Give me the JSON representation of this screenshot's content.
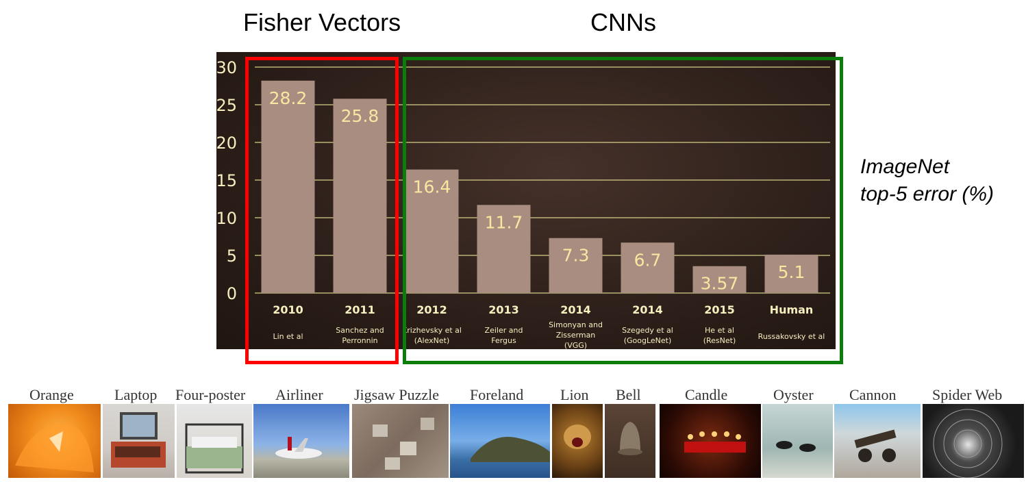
{
  "headings": {
    "fisher": "Fisher Vectors",
    "cnn": "CNNs"
  },
  "ylabel_lines": [
    "ImageNet",
    "top-5 error (%)"
  ],
  "colors": {
    "bar": "#a88d80",
    "value_label": "#f7e7a1",
    "grid": "#d8cf8a",
    "axis_text": "#f6efc0",
    "fisher_box": "#ff0000",
    "cnn_box": "#0b7d0b"
  },
  "chart_data": {
    "type": "bar",
    "categories": [
      "2010",
      "2011",
      "2012",
      "2013",
      "2014",
      "2014",
      "2015",
      "Human"
    ],
    "sublabels": [
      [
        "Lin et al"
      ],
      [
        "Sanchez and",
        "Perronnin"
      ],
      [
        "Krizhevsky et al",
        "(AlexNet)"
      ],
      [
        "Zeiler and",
        "Fergus"
      ],
      [
        "Simonyan and",
        "Zisserman",
        "(VGG)"
      ],
      [
        "Szegedy et al",
        "(GoogLeNet)"
      ],
      [
        "He et al",
        "(ResNet)"
      ],
      [
        "Russakovsky et al"
      ]
    ],
    "values": [
      28.2,
      25.8,
      16.4,
      11.7,
      7.3,
      6.7,
      3.57,
      5.1
    ],
    "value_labels": [
      "28.2",
      "25.8",
      "16.4",
      "11.7",
      "7.3",
      "6.7",
      "3.57",
      "5.1"
    ],
    "yticks": [
      "0",
      "5",
      "10",
      "15",
      "20",
      "25",
      "30"
    ],
    "ylim": [
      0,
      30
    ],
    "grid": true
  },
  "thumbnails": [
    {
      "label": "Orange",
      "icon": "orange-photo"
    },
    {
      "label": "Laptop",
      "icon": "laptop-photo"
    },
    {
      "label": "Four-poster",
      "icon": "bed-photo"
    },
    {
      "label": "Airliner",
      "icon": "airliner-photo"
    },
    {
      "label": "Jigsaw Puzzle",
      "icon": "puzzle-photo"
    },
    {
      "label": "Foreland",
      "icon": "foreland-photo"
    },
    {
      "label": "Lion",
      "icon": "lion-photo"
    },
    {
      "label": "Bell",
      "icon": "bell-photo"
    },
    {
      "label": "Candle",
      "icon": "candle-photo"
    },
    {
      "label": "Oyster",
      "icon": "oyster-photo"
    },
    {
      "label": "Cannon",
      "icon": "cannon-photo"
    },
    {
      "label": "Spider Web",
      "icon": "spiderweb-photo"
    }
  ]
}
